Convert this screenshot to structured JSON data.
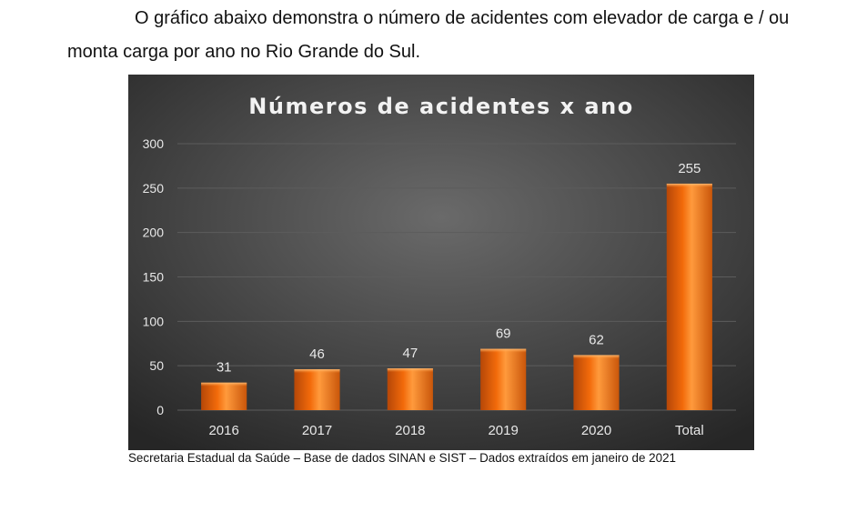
{
  "document": {
    "intro_text": "O gráfico abaixo demonstra o número de acidentes com elevador de carga e / ou monta carga por ano no Rio Grande do Sul.",
    "source_note": "Secretaria Estadual da Saúde – Base de dados SINAN e SIST – Dados extraídos em janeiro de 2021"
  },
  "chart_data": {
    "type": "bar",
    "title": "Números de acidentes x ano",
    "xlabel": "",
    "ylabel": "",
    "categories": [
      "2016",
      "2017",
      "2018",
      "2019",
      "2020",
      "Total"
    ],
    "values": [
      31,
      46,
      47,
      69,
      62,
      255
    ],
    "ylim": [
      0,
      300
    ],
    "yticks": [
      0,
      50,
      100,
      150,
      200,
      250,
      300
    ],
    "grid": true,
    "legend": "none",
    "colors": {
      "background_center": "#6a6a6a",
      "background_edge": "#262626",
      "bar_light": "#ff9a3c",
      "bar_mid": "#f26a0a",
      "bar_dark": "#b54708",
      "text": "#e8e8e8",
      "title": "#f2f2f2",
      "gridline": "#5c5c5c"
    }
  }
}
